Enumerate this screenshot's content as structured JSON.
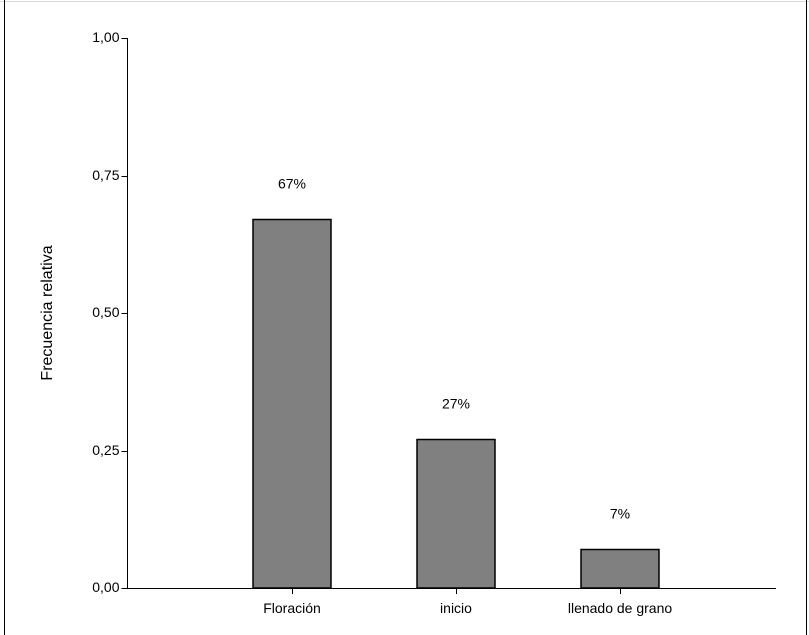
{
  "chart_data": {
    "type": "bar",
    "title": "",
    "xlabel": "",
    "ylabel": "Frecuencia relativa",
    "categories": [
      "Floración",
      "inicio",
      "llenado de grano"
    ],
    "values": [
      0.67,
      0.27,
      0.07
    ],
    "data_labels": [
      "67%",
      "27%",
      "7%"
    ],
    "ylim": [
      0,
      1
    ],
    "yticks": [
      0,
      0.25,
      0.5,
      0.75,
      1
    ],
    "ytick_labels": [
      "0,00",
      "0,25",
      "0,50",
      "0,75",
      "1,00"
    ],
    "grid": false,
    "legend": "none",
    "colors": {
      "bar_fill": "#808080",
      "bar_stroke": "#000000",
      "axis": "#000000",
      "frame": "#d9d9d9"
    }
  }
}
